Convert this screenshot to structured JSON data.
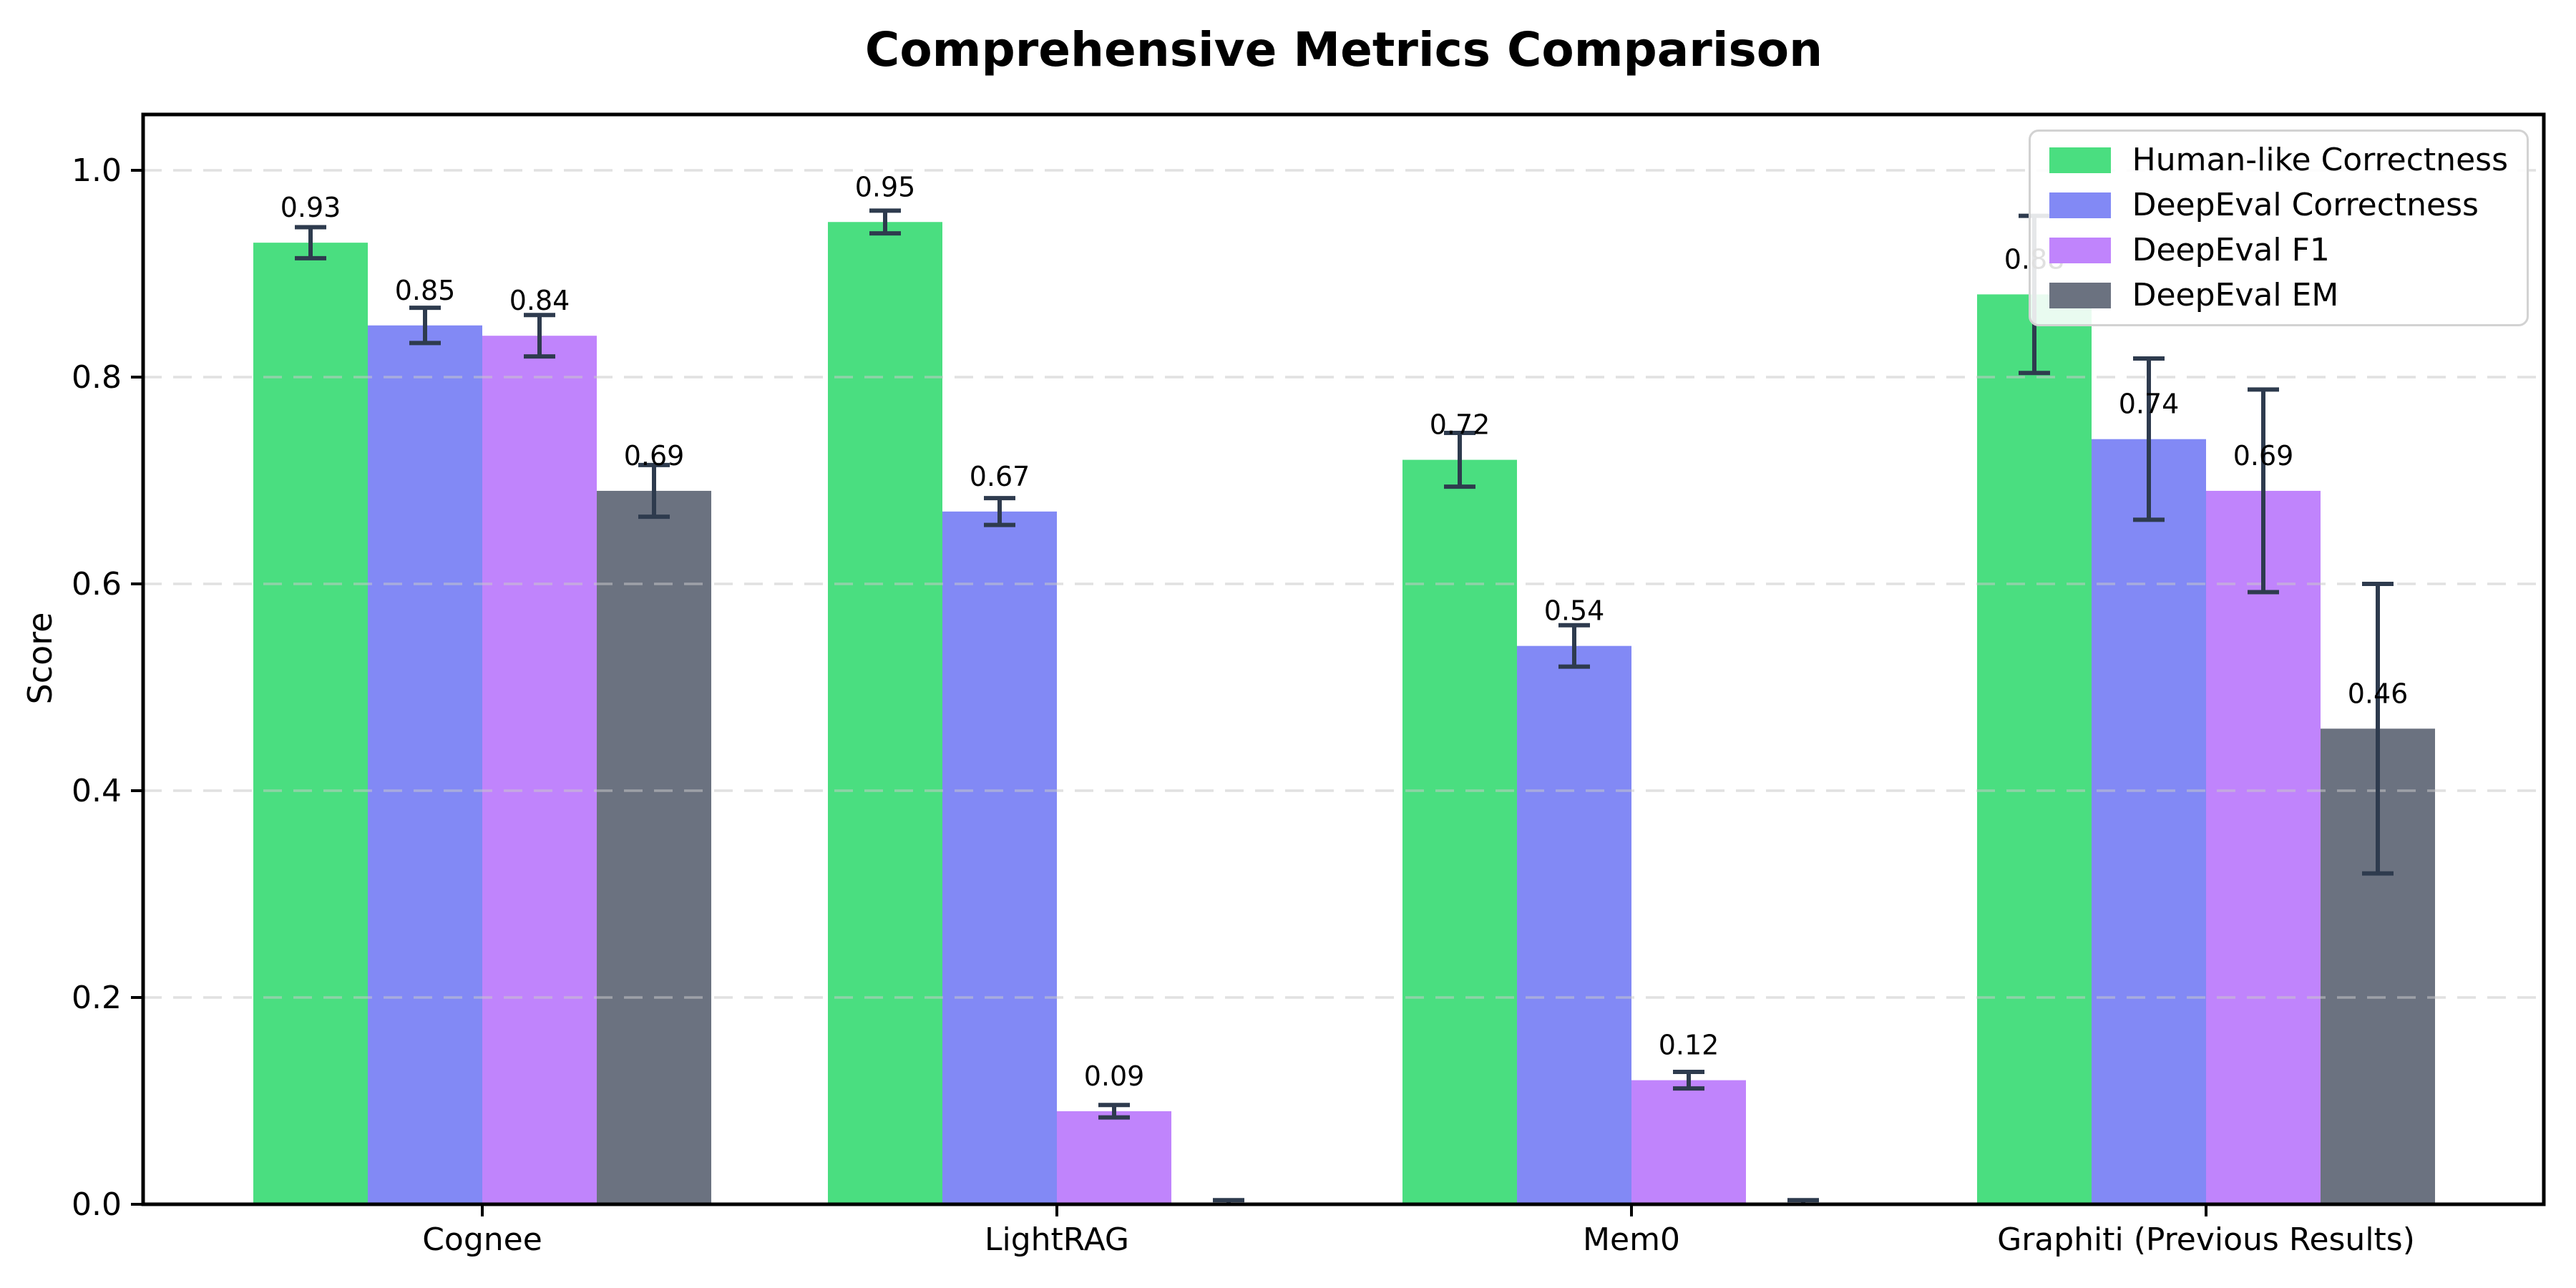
{
  "page": {
    "background": "#ffffff"
  },
  "chart_data": {
    "type": "bar",
    "title": "Comprehensive Metrics Comparison",
    "xlabel": "",
    "ylabel": "Score",
    "categories": [
      "Cognee",
      "LightRAG",
      "Mem0",
      "Graphiti (Previous Results)"
    ],
    "series": [
      {
        "name": "Human-like Correctness",
        "color": "#4ade80",
        "values": [
          0.93,
          0.95,
          0.72,
          0.88
        ],
        "errors": [
          0.015,
          0.011,
          0.026,
          0.076
        ],
        "labels": [
          "0.93",
          "0.95",
          "0.72",
          "0.88"
        ]
      },
      {
        "name": "DeepEval Correctness",
        "color": "#8289f5",
        "values": [
          0.85,
          0.67,
          0.54,
          0.74
        ],
        "errors": [
          0.017,
          0.013,
          0.02,
          0.078
        ],
        "labels": [
          "0.85",
          "0.67",
          "0.54",
          "0.74"
        ]
      },
      {
        "name": "DeepEval F1",
        "color": "#c084fc",
        "values": [
          0.84,
          0.09,
          0.12,
          0.69
        ],
        "errors": [
          0.02,
          0.006,
          0.008,
          0.098
        ],
        "labels": [
          "0.84",
          "0.09",
          "0.12",
          "0.69"
        ]
      },
      {
        "name": "DeepEval EM",
        "color": "#6b7280",
        "values": [
          0.69,
          0.0,
          0.0,
          0.46
        ],
        "errors": [
          0.025,
          0.004,
          0.004,
          0.14
        ],
        "labels": [
          "0.69",
          null,
          null,
          "0.46"
        ]
      }
    ],
    "ylim": [
      0.0,
      1.054
    ],
    "yticks": [
      0.0,
      0.2,
      0.4,
      0.6,
      0.8,
      1.0
    ],
    "ytick_labels": [
      "0.0",
      "0.2",
      "0.4",
      "0.6",
      "0.8",
      "1.0"
    ],
    "grid": true,
    "grid_style": "dashed",
    "legend_position": "upper right",
    "colors": {
      "error_bar": "#2e3b4e",
      "gridline": "#c9c9c9",
      "axis": "#000000",
      "legend_border": "#d2d2d2",
      "text": "#000000"
    }
  }
}
